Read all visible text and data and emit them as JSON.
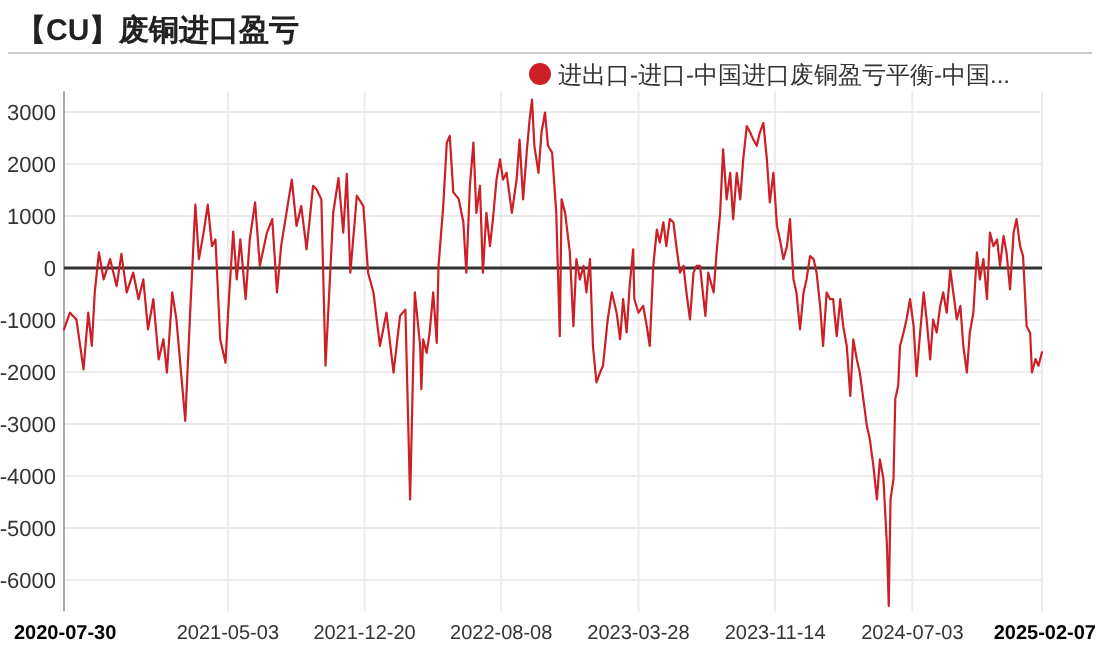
{
  "chart_data": {
    "type": "line",
    "title": "【CU】废铜进口盈亏",
    "legend": "top right",
    "grid": true,
    "marker": "none",
    "line_style": "solid",
    "xlim": [
      "2020-07-30",
      "2025-02-07"
    ],
    "xticks": [
      "2020-07-30",
      "2021-05-03",
      "2021-12-20",
      "2022-08-08",
      "2023-03-28",
      "2023-11-14",
      "2024-07-03",
      "2025-02-07"
    ],
    "ylim": [
      -6600,
      3400
    ],
    "yticks": [
      -6000,
      -5000,
      -4000,
      -3000,
      -2000,
      -1000,
      0,
      1000,
      2000,
      3000
    ],
    "ref_lines": [
      {
        "axis": "y",
        "value": 0,
        "color": "#333333"
      }
    ],
    "x": [
      "2020-07-30",
      "2020-08-09",
      "2020-08-20",
      "2020-09-01",
      "2020-09-09",
      "2020-09-15",
      "2020-09-20",
      "2020-09-27",
      "2020-10-05",
      "2020-10-16",
      "2020-10-27",
      "2020-11-04",
      "2020-11-13",
      "2020-11-24",
      "2020-12-03",
      "2020-12-11",
      "2020-12-19",
      "2020-12-28",
      "2021-01-06",
      "2021-01-14",
      "2021-01-20",
      "2021-01-29",
      "2021-02-05",
      "2021-02-20",
      "2021-02-28",
      "2021-03-09",
      "2021-03-15",
      "2021-03-23",
      "2021-03-30",
      "2021-04-06",
      "2021-04-12",
      "2021-04-20",
      "2021-04-29",
      "2021-05-04",
      "2021-05-12",
      "2021-05-18",
      "2021-05-24",
      "2021-06-02",
      "2021-06-09",
      "2021-06-18",
      "2021-06-26",
      "2021-07-08",
      "2021-07-17",
      "2021-07-25",
      "2021-08-01",
      "2021-08-10",
      "2021-08-19",
      "2021-08-27",
      "2021-09-04",
      "2021-09-13",
      "2021-09-24",
      "2021-09-30",
      "2021-10-08",
      "2021-10-15",
      "2021-10-23",
      "2021-10-28",
      "2021-11-06",
      "2021-11-14",
      "2021-11-20",
      "2021-11-26",
      "2021-12-07",
      "2021-12-18",
      "2021-12-26",
      "2022-01-04",
      "2022-01-15",
      "2022-01-26",
      "2022-02-07",
      "2022-02-18",
      "2022-02-27",
      "2022-03-07",
      "2022-03-15",
      "2022-03-24",
      "2022-03-26",
      "2022-03-29",
      "2022-04-04",
      "2022-04-09",
      "2022-04-15",
      "2022-04-21",
      "2022-04-24",
      "2022-05-02",
      "2022-05-08",
      "2022-05-13",
      "2022-05-19",
      "2022-05-28",
      "2022-06-05",
      "2022-06-10",
      "2022-06-16",
      "2022-06-22",
      "2022-06-27",
      "2022-07-03",
      "2022-07-08",
      "2022-07-14",
      "2022-07-20",
      "2022-07-25",
      "2022-07-31",
      "2022-08-06",
      "2022-08-11",
      "2022-08-17",
      "2022-08-26",
      "2022-09-03",
      "2022-09-08",
      "2022-09-14",
      "2022-09-20",
      "2022-09-25",
      "2022-09-29",
      "2022-10-03",
      "2022-10-10",
      "2022-10-15",
      "2022-10-21",
      "2022-10-26",
      "2022-11-02",
      "2022-11-09",
      "2022-11-15",
      "2022-11-18",
      "2022-11-24",
      "2022-12-02",
      "2022-12-08",
      "2022-12-13",
      "2022-12-19",
      "2022-12-25",
      "2022-12-30",
      "2023-01-05",
      "2023-01-10",
      "2023-01-16",
      "2023-01-22",
      "2023-01-27",
      "2023-02-04",
      "2023-02-11",
      "2023-02-19",
      "2023-02-25",
      "2023-03-02",
      "2023-03-08",
      "2023-03-13",
      "2023-03-19",
      "2023-03-21",
      "2023-03-28",
      "2023-04-05",
      "2023-04-11",
      "2023-04-16",
      "2023-04-22",
      "2023-04-28",
      "2023-05-03",
      "2023-05-09",
      "2023-05-14",
      "2023-05-20",
      "2023-05-26",
      "2023-05-31",
      "2023-06-06",
      "2023-06-12",
      "2023-06-17",
      "2023-06-23",
      "2023-06-29",
      "2023-07-04",
      "2023-07-10",
      "2023-07-16",
      "2023-07-19",
      "2023-07-24",
      "2023-07-27",
      "2023-08-02",
      "2023-08-07",
      "2023-08-13",
      "2023-08-18",
      "2023-08-24",
      "2023-08-30",
      "2023-09-04",
      "2023-09-10",
      "2023-09-16",
      "2023-09-21",
      "2023-09-27",
      "2023-10-03",
      "2023-10-08",
      "2023-10-14",
      "2023-10-19",
      "2023-10-25",
      "2023-10-31",
      "2023-11-05",
      "2023-11-11",
      "2023-11-17",
      "2023-11-22",
      "2023-11-28",
      "2023-12-04",
      "2023-12-09",
      "2023-12-15",
      "2023-12-20",
      "2023-12-26",
      "2024-01-01",
      "2024-01-06",
      "2024-01-12",
      "2024-01-18",
      "2024-01-23",
      "2024-01-29",
      "2024-02-03",
      "2024-02-09",
      "2024-02-15",
      "2024-02-20",
      "2024-02-26",
      "2024-03-03",
      "2024-03-08",
      "2024-03-14",
      "2024-03-20",
      "2024-03-25",
      "2024-03-31",
      "2024-04-05",
      "2024-04-11",
      "2024-04-17",
      "2024-04-22",
      "2024-04-28",
      "2024-05-04",
      "2024-05-09",
      "2024-05-15",
      "2024-05-21",
      "2024-05-24",
      "2024-05-27",
      "2024-06-01",
      "2024-06-04",
      "2024-06-09",
      "2024-06-12",
      "2024-06-18",
      "2024-06-23",
      "2024-06-29",
      "2024-07-05",
      "2024-07-10",
      "2024-07-16",
      "2024-07-22",
      "2024-07-27",
      "2024-08-02",
      "2024-08-07",
      "2024-08-13",
      "2024-08-19",
      "2024-08-24",
      "2024-08-30",
      "2024-09-05",
      "2024-09-10",
      "2024-09-16",
      "2024-09-22",
      "2024-09-27",
      "2024-10-03",
      "2024-10-08",
      "2024-10-14",
      "2024-10-20",
      "2024-10-25",
      "2024-10-31",
      "2024-11-06",
      "2024-11-11",
      "2024-11-17",
      "2024-11-23",
      "2024-11-28",
      "2024-12-04",
      "2024-12-09",
      "2024-12-15",
      "2024-12-21",
      "2024-12-26",
      "2025-01-01",
      "2025-01-06",
      "2025-01-12",
      "2025-01-18",
      "2025-01-21",
      "2025-01-27",
      "2025-02-01",
      "2025-02-07"
    ],
    "series": [
      {
        "name": "进出口-进口-中国进口废铜盈亏平衡-中国...",
        "color": "#cc1f26",
        "values": [
          -1180,
          -860,
          -990,
          -1950,
          -860,
          -1500,
          -470,
          300,
          -220,
          170,
          -350,
          270,
          -470,
          -90,
          -600,
          -220,
          -1180,
          -600,
          -1760,
          -1370,
          -2010,
          -470,
          -990,
          -2940,
          -920,
          1220,
          170,
          680,
          1220,
          420,
          550,
          -1370,
          -1820,
          -730,
          700,
          -220,
          550,
          -600,
          550,
          1260,
          40,
          680,
          940,
          -470,
          420,
          1060,
          1700,
          810,
          1190,
          360,
          1580,
          1510,
          1320,
          -1880,
          -90,
          1060,
          1730,
          680,
          1810,
          -90,
          1390,
          1190,
          -90,
          -470,
          -1500,
          -860,
          -2010,
          -920,
          -800,
          -4450,
          -470,
          -1500,
          -2330,
          -1370,
          -1630,
          -1240,
          -470,
          -1440,
          40,
          1190,
          2410,
          2540,
          1460,
          1330,
          880,
          -90,
          1580,
          2410,
          1060,
          1580,
          -90,
          1060,
          420,
          940,
          1700,
          2090,
          1700,
          1830,
          1060,
          1700,
          2470,
          1320,
          2220,
          2860,
          3240,
          2350,
          1830,
          2600,
          2990,
          2350,
          2220,
          1060,
          -1310,
          1320,
          1060,
          300,
          -1120,
          170,
          -220,
          40,
          -470,
          170,
          -1500,
          -2200,
          -2010,
          -1880,
          -990,
          -470,
          -860,
          -1370,
          -600,
          -1240,
          -350,
          360,
          -600,
          -860,
          -730,
          -1120,
          -1500,
          40,
          740,
          490,
          880,
          420,
          940,
          880,
          420,
          -90,
          40,
          -470,
          -990,
          -90,
          40,
          40,
          -600,
          -920,
          -90,
          -220,
          -470,
          300,
          1060,
          2280,
          1320,
          1830,
          940,
          1830,
          1320,
          2090,
          2730,
          2600,
          2470,
          2350,
          2600,
          2790,
          2090,
          1260,
          1830,
          810,
          550,
          170,
          420,
          940,
          -220,
          -470,
          -1180,
          -470,
          -220,
          230,
          170,
          -90,
          -730,
          -1500,
          -470,
          -600,
          -600,
          -1310,
          -600,
          -1120,
          -1500,
          -2460,
          -1370,
          -1760,
          -2010,
          -2520,
          -3040,
          -3290,
          -3810,
          -4450,
          -3680,
          -4060,
          -5350,
          -6500,
          -4450,
          -4060,
          -2520,
          -2260,
          -1500,
          -1240,
          -990,
          -600,
          -1120,
          -2080,
          -1240,
          -470,
          -990,
          -1760,
          -990,
          -1240,
          -730,
          -470,
          -860,
          -30,
          -470,
          -990,
          -730,
          -1500,
          -2010,
          -1240,
          -860,
          300,
          -220,
          170,
          -600,
          680,
          420,
          550,
          40,
          620,
          300,
          -410,
          680,
          940,
          420,
          230,
          -1120,
          -1250,
          -2010,
          -1750,
          -1880,
          -1620
        ]
      }
    ]
  }
}
